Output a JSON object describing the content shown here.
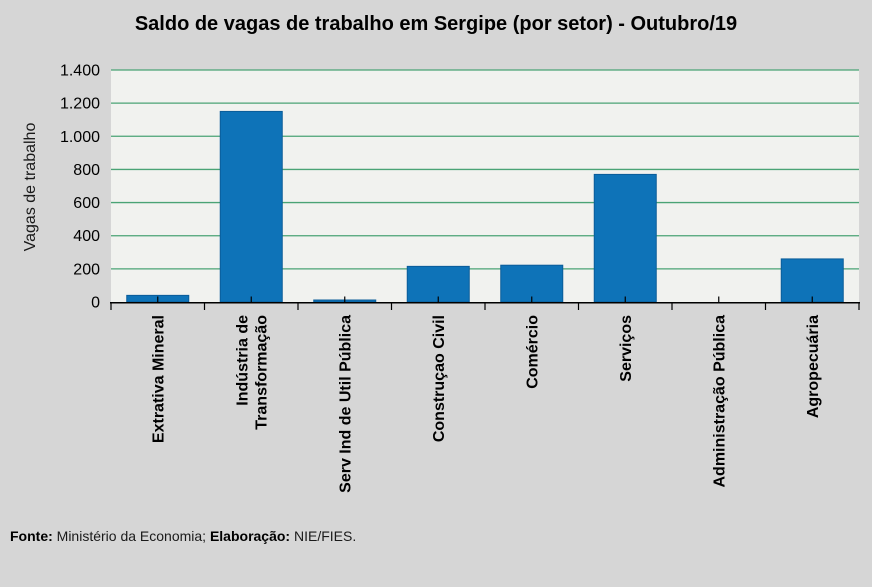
{
  "chart_data": {
    "type": "bar",
    "title": "Saldo de vagas de trabalho em Sergipe (por setor) - Outubro/19",
    "xlabel": "",
    "ylabel": "Vagas de trabalho",
    "categories": [
      "Extrativa Mineral",
      "Indústria de Transformação",
      "Serv Ind de Util Pública",
      "Construçao Civil",
      "Comércio",
      "Serviços",
      "Administração Pública",
      "Agropecuária"
    ],
    "category_lines": [
      [
        "Extrativa Mineral"
      ],
      [
        "Indústria de",
        "Transformação"
      ],
      [
        "Serv Ind de Util Pública"
      ],
      [
        "Construçao Civil"
      ],
      [
        "Comércio"
      ],
      [
        "Serviços"
      ],
      [
        "Administração Pública"
      ],
      [
        "Agropecuária"
      ]
    ],
    "values": [
      40,
      1150,
      12,
      215,
      222,
      770,
      0,
      260
    ],
    "ylim": [
      0,
      1400
    ],
    "ytick_step": 200,
    "ytick_labels": [
      "0",
      "200",
      "400",
      "600",
      "800",
      "1.000",
      "1.200",
      "1.400"
    ],
    "grid": true,
    "legend": "none",
    "colors": {
      "bar_fill": "#0e73b8",
      "bar_border": "#0a5c99",
      "gridline": "#4aa375",
      "plot_background": "#f1f2ef",
      "page_background": "#d6d6d6",
      "axis": "#000000",
      "text": "#000000"
    }
  },
  "footer": {
    "fonte_label": "Fonte:",
    "fonte_text": " Ministério da Economia; ",
    "elaboracao_label": "Elaboração:",
    "elaboracao_text": " NIE/FIES."
  }
}
